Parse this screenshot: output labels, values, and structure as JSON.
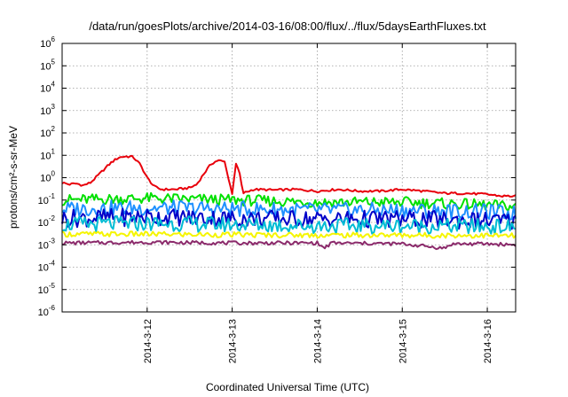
{
  "chart_data": {
    "type": "line",
    "title": "/data/run/goesPlots/archive/2014-03-16/08:00/flux/../flux/5daysEarthFluxes.txt",
    "xlabel": "Coordinated Universal Time (UTC)",
    "ylabel": "protons/cm²-s-sr-MeV",
    "xlim": [
      "2014-03-11T00:00",
      "2014-03-16T08:00"
    ],
    "x_ticks": [
      "2014-3-12",
      "2014-3-13",
      "2014-3-14",
      "2014-3-15",
      "2014-3-16"
    ],
    "y_scale": "log",
    "ylim": [
      1e-06,
      1000000.0
    ],
    "y_ticks": [
      {
        "base": "10",
        "exp": "-6",
        "value": 1e-06
      },
      {
        "base": "10",
        "exp": "-5",
        "value": 1e-05
      },
      {
        "base": "10",
        "exp": "-4",
        "value": 0.0001
      },
      {
        "base": "10",
        "exp": "-3",
        "value": 0.001
      },
      {
        "base": "10",
        "exp": "-2",
        "value": 0.01
      },
      {
        "base": "10",
        "exp": "-1",
        "value": 0.1
      },
      {
        "base": "10",
        "exp": "0",
        "value": 1
      },
      {
        "base": "10",
        "exp": "1",
        "value": 10
      },
      {
        "base": "10",
        "exp": "2",
        "value": 100
      },
      {
        "base": "10",
        "exp": "3",
        "value": 1000
      },
      {
        "base": "10",
        "exp": "4",
        "value": 10000
      },
      {
        "base": "10",
        "exp": "5",
        "value": 100000
      },
      {
        "base": "10",
        "exp": "6",
        "value": 1000000
      }
    ],
    "grid": true,
    "series": [
      {
        "color": "#e8000b",
        "points": [
          [
            "2014-03-11T00:00",
            0.6
          ],
          [
            "2014-03-11T02:00",
            0.5
          ],
          [
            "2014-03-11T04:00",
            0.55
          ],
          [
            "2014-03-11T06:00",
            0.45
          ],
          [
            "2014-03-11T08:00",
            0.6
          ],
          [
            "2014-03-11T10:00",
            1.2
          ],
          [
            "2014-03-11T12:00",
            2.5
          ],
          [
            "2014-03-11T14:00",
            5
          ],
          [
            "2014-03-11T16:00",
            8
          ],
          [
            "2014-03-11T18:00",
            9
          ],
          [
            "2014-03-11T20:00",
            8.5
          ],
          [
            "2014-03-11T22:00",
            4
          ],
          [
            "2014-03-12T00:00",
            1
          ],
          [
            "2014-03-12T02:00",
            0.4
          ],
          [
            "2014-03-12T04:00",
            0.3
          ],
          [
            "2014-03-12T08:00",
            0.3
          ],
          [
            "2014-03-12T12:00",
            0.35
          ],
          [
            "2014-03-12T14:00",
            0.5
          ],
          [
            "2014-03-12T16:00",
            1.5
          ],
          [
            "2014-03-12T18:00",
            4
          ],
          [
            "2014-03-12T19:00",
            5
          ],
          [
            "2014-03-12T20:00",
            6
          ],
          [
            "2014-03-12T22:00",
            5
          ],
          [
            "2014-03-12T23:00",
            0.8
          ],
          [
            "2014-03-13T00:00",
            0.2
          ],
          [
            "2014-03-13T01:00",
            4
          ],
          [
            "2014-03-13T02:00",
            2
          ],
          [
            "2014-03-13T03:00",
            0.2
          ],
          [
            "2014-03-13T06:00",
            0.3
          ],
          [
            "2014-03-13T12:00",
            0.28
          ],
          [
            "2014-03-13T18:00",
            0.3
          ],
          [
            "2014-03-14T00:00",
            0.25
          ],
          [
            "2014-03-14T06:00",
            0.3
          ],
          [
            "2014-03-14T12:00",
            0.25
          ],
          [
            "2014-03-14T18:00",
            0.25
          ],
          [
            "2014-03-15T00:00",
            0.3
          ],
          [
            "2014-03-15T06:00",
            0.25
          ],
          [
            "2014-03-15T12:00",
            0.2
          ],
          [
            "2014-03-15T18:00",
            0.2
          ],
          [
            "2014-03-16T00:00",
            0.18
          ],
          [
            "2014-03-16T04:00",
            0.15
          ],
          [
            "2014-03-16T08:00",
            0.15
          ]
        ]
      },
      {
        "color": "#00e000",
        "points": [
          [
            "2014-03-11T00:00",
            0.1
          ],
          [
            "2014-03-12T00:00",
            0.12
          ],
          [
            "2014-03-13T00:00",
            0.1
          ],
          [
            "2014-03-14T00:00",
            0.08
          ],
          [
            "2014-03-15T00:00",
            0.08
          ],
          [
            "2014-03-16T00:00",
            0.06
          ],
          [
            "2014-03-16T08:00",
            0.05
          ]
        ]
      },
      {
        "color": "#1e90ff",
        "points": [
          [
            "2014-03-11T00:00",
            0.04
          ],
          [
            "2014-03-12T00:00",
            0.045
          ],
          [
            "2014-03-13T00:00",
            0.04
          ],
          [
            "2014-03-14T00:00",
            0.035
          ],
          [
            "2014-03-15T00:00",
            0.035
          ],
          [
            "2014-03-16T00:00",
            0.03
          ],
          [
            "2014-03-16T08:00",
            0.025
          ]
        ]
      },
      {
        "color": "#0000c8",
        "points": [
          [
            "2014-03-11T00:00",
            0.015
          ],
          [
            "2014-03-12T00:00",
            0.018
          ],
          [
            "2014-03-13T00:00",
            0.015
          ],
          [
            "2014-03-14T00:00",
            0.014
          ],
          [
            "2014-03-15T00:00",
            0.014
          ],
          [
            "2014-03-16T00:00",
            0.012
          ],
          [
            "2014-03-16T08:00",
            0.011
          ]
        ]
      },
      {
        "color": "#00bcd4",
        "points": [
          [
            "2014-03-11T00:00",
            0.008
          ],
          [
            "2014-03-12T00:00",
            0.009
          ],
          [
            "2014-03-13T00:00",
            0.008
          ],
          [
            "2014-03-14T00:00",
            0.007
          ],
          [
            "2014-03-15T00:00",
            0.007
          ],
          [
            "2014-03-16T00:00",
            0.0065
          ],
          [
            "2014-03-16T08:00",
            0.006
          ]
        ]
      },
      {
        "color": "#f5f500",
        "points": [
          [
            "2014-03-11T00:00",
            0.003
          ],
          [
            "2014-03-12T00:00",
            0.003
          ],
          [
            "2014-03-13T00:00",
            0.0028
          ],
          [
            "2014-03-14T00:00",
            0.0027
          ],
          [
            "2014-03-15T00:00",
            0.0027
          ],
          [
            "2014-03-16T00:00",
            0.0026
          ],
          [
            "2014-03-16T08:00",
            0.0025
          ]
        ]
      },
      {
        "color": "#8b2a6b",
        "points": [
          [
            "2014-03-11T00:00",
            0.0012
          ],
          [
            "2014-03-12T00:00",
            0.0013
          ],
          [
            "2014-03-13T00:00",
            0.0012
          ],
          [
            "2014-03-14T00:00",
            0.0012
          ],
          [
            "2014-03-14T02:00",
            0.0007
          ],
          [
            "2014-03-14T04:00",
            0.0012
          ],
          [
            "2014-03-15T00:00",
            0.0011
          ],
          [
            "2014-03-15T12:00",
            0.0007
          ],
          [
            "2014-03-15T14:00",
            0.0011
          ],
          [
            "2014-03-16T00:00",
            0.0011
          ],
          [
            "2014-03-16T08:00",
            0.001
          ]
        ]
      }
    ]
  }
}
